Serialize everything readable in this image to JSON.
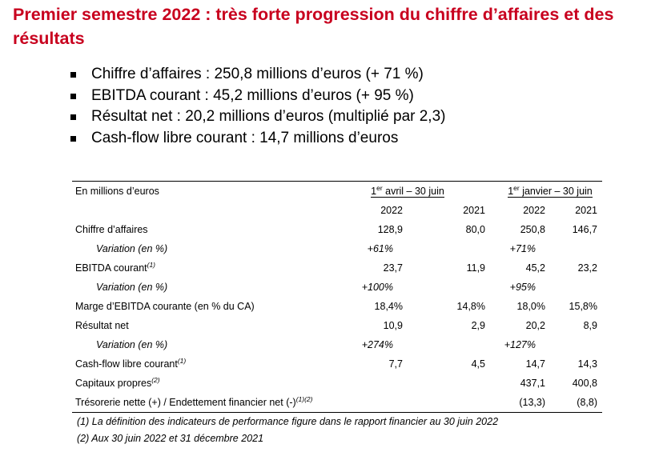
{
  "title": "Premier semestre 2022 : très forte progression du chiffre d’affaires et des résultats",
  "bullets": [
    "Chiffre d’affaires : 250,8 millions d’euros (+ 71 %)",
    "EBITDA courant : 45,2 millions d’euros (+ 95 %)",
    "Résultat net : 20,2 millions d’euros (multiplié par 2,3)",
    "Cash-flow libre courant : 14,7 millions d’euros"
  ],
  "table": {
    "unit_label": "En millions d’euros",
    "period1": {
      "pre": "1",
      "sup": "er",
      "post": " avril – 30 juin"
    },
    "period2": {
      "pre": "1",
      "sup": "er",
      "post": " janvier – 30 juin"
    },
    "years": [
      "2022",
      "2021",
      "2022",
      "2021"
    ],
    "rows": {
      "ca": {
        "label": "Chiffre d’affaires",
        "v": [
          "128,9",
          "80,0",
          "250,8",
          "146,7"
        ]
      },
      "ca_var": {
        "label": "Variation (en %)",
        "v": [
          "+61%",
          "+71%"
        ]
      },
      "ebitda": {
        "label": "EBITDA courant",
        "sup": "(1)",
        "v": [
          "23,7",
          "11,9",
          "45,2",
          "23,2"
        ]
      },
      "ebitda_var": {
        "label": "Variation (en %)",
        "v": [
          "+100%",
          "+95%"
        ]
      },
      "marge": {
        "label": "Marge d’EBITDA courante (en % du CA)",
        "v": [
          "18,4%",
          "14,8%",
          "18,0%",
          "15,8%"
        ]
      },
      "rn": {
        "label": "Résultat net",
        "v": [
          "10,9",
          "2,9",
          "20,2",
          "8,9"
        ]
      },
      "rn_var": {
        "label": "Variation (en %)",
        "v": [
          "+274%",
          "+127%"
        ]
      },
      "cf": {
        "label": "Cash-flow libre courant",
        "sup": "(1)",
        "v": [
          "7,7",
          "4,5",
          "14,7",
          "14,3"
        ]
      },
      "cp": {
        "label": "Capitaux propres",
        "sup": "(2)",
        "v": [
          "437,1",
          "400,8"
        ]
      },
      "treso": {
        "label": "Trésorerie nette (+) / Endettement financier net (-)",
        "sup": "(1)(2)",
        "v": [
          "(13,3)",
          "(8,8)"
        ]
      }
    }
  },
  "notes": [
    "(1)   La définition des indicateurs de performance figure dans le rapport financier au 30 juin 2022",
    "(2)  Aux 30 juin 2022 et 31 décembre 2021"
  ],
  "colors": {
    "title": "#c8001e"
  }
}
